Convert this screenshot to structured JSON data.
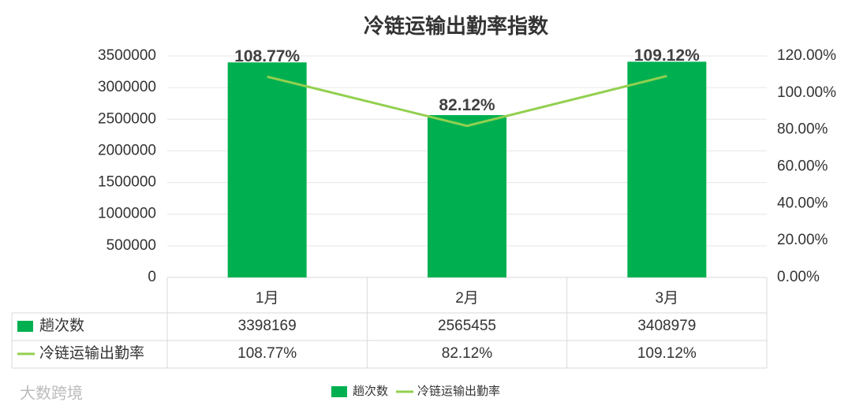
{
  "chart_data": {
    "type": "combo",
    "title": "冷链运输出勤率指数",
    "categories": [
      "1月",
      "2月",
      "3月"
    ],
    "series": [
      {
        "name": "趟次数",
        "type": "bar",
        "color": "#00b050",
        "values": [
          3398169,
          2565455,
          3408979
        ]
      },
      {
        "name": "冷链运输出勤率",
        "type": "line",
        "axis": "y2",
        "color": "#92d050",
        "values": [
          108.77,
          82.12,
          109.12
        ],
        "value_labels": [
          "108.77%",
          "82.12%",
          "109.12%"
        ]
      }
    ],
    "ylim": [
      0,
      3500000
    ],
    "yticks": [
      0,
      500000,
      1000000,
      1500000,
      2000000,
      2500000,
      3000000,
      3500000
    ],
    "y2lim": [
      0,
      120
    ],
    "y2ticks": [
      {
        "value": 0,
        "label": "0.00%"
      },
      {
        "value": 20,
        "label": "20.00%"
      },
      {
        "value": 40,
        "label": "40.00%"
      },
      {
        "value": 60,
        "label": "60.00%"
      },
      {
        "value": 80,
        "label": "80.00%"
      },
      {
        "value": 100,
        "label": "100.00%"
      },
      {
        "value": 120,
        "label": "120.00%"
      }
    ],
    "grid": true,
    "legend": "bottom",
    "data_table": true,
    "watermark": "大数跨境"
  }
}
